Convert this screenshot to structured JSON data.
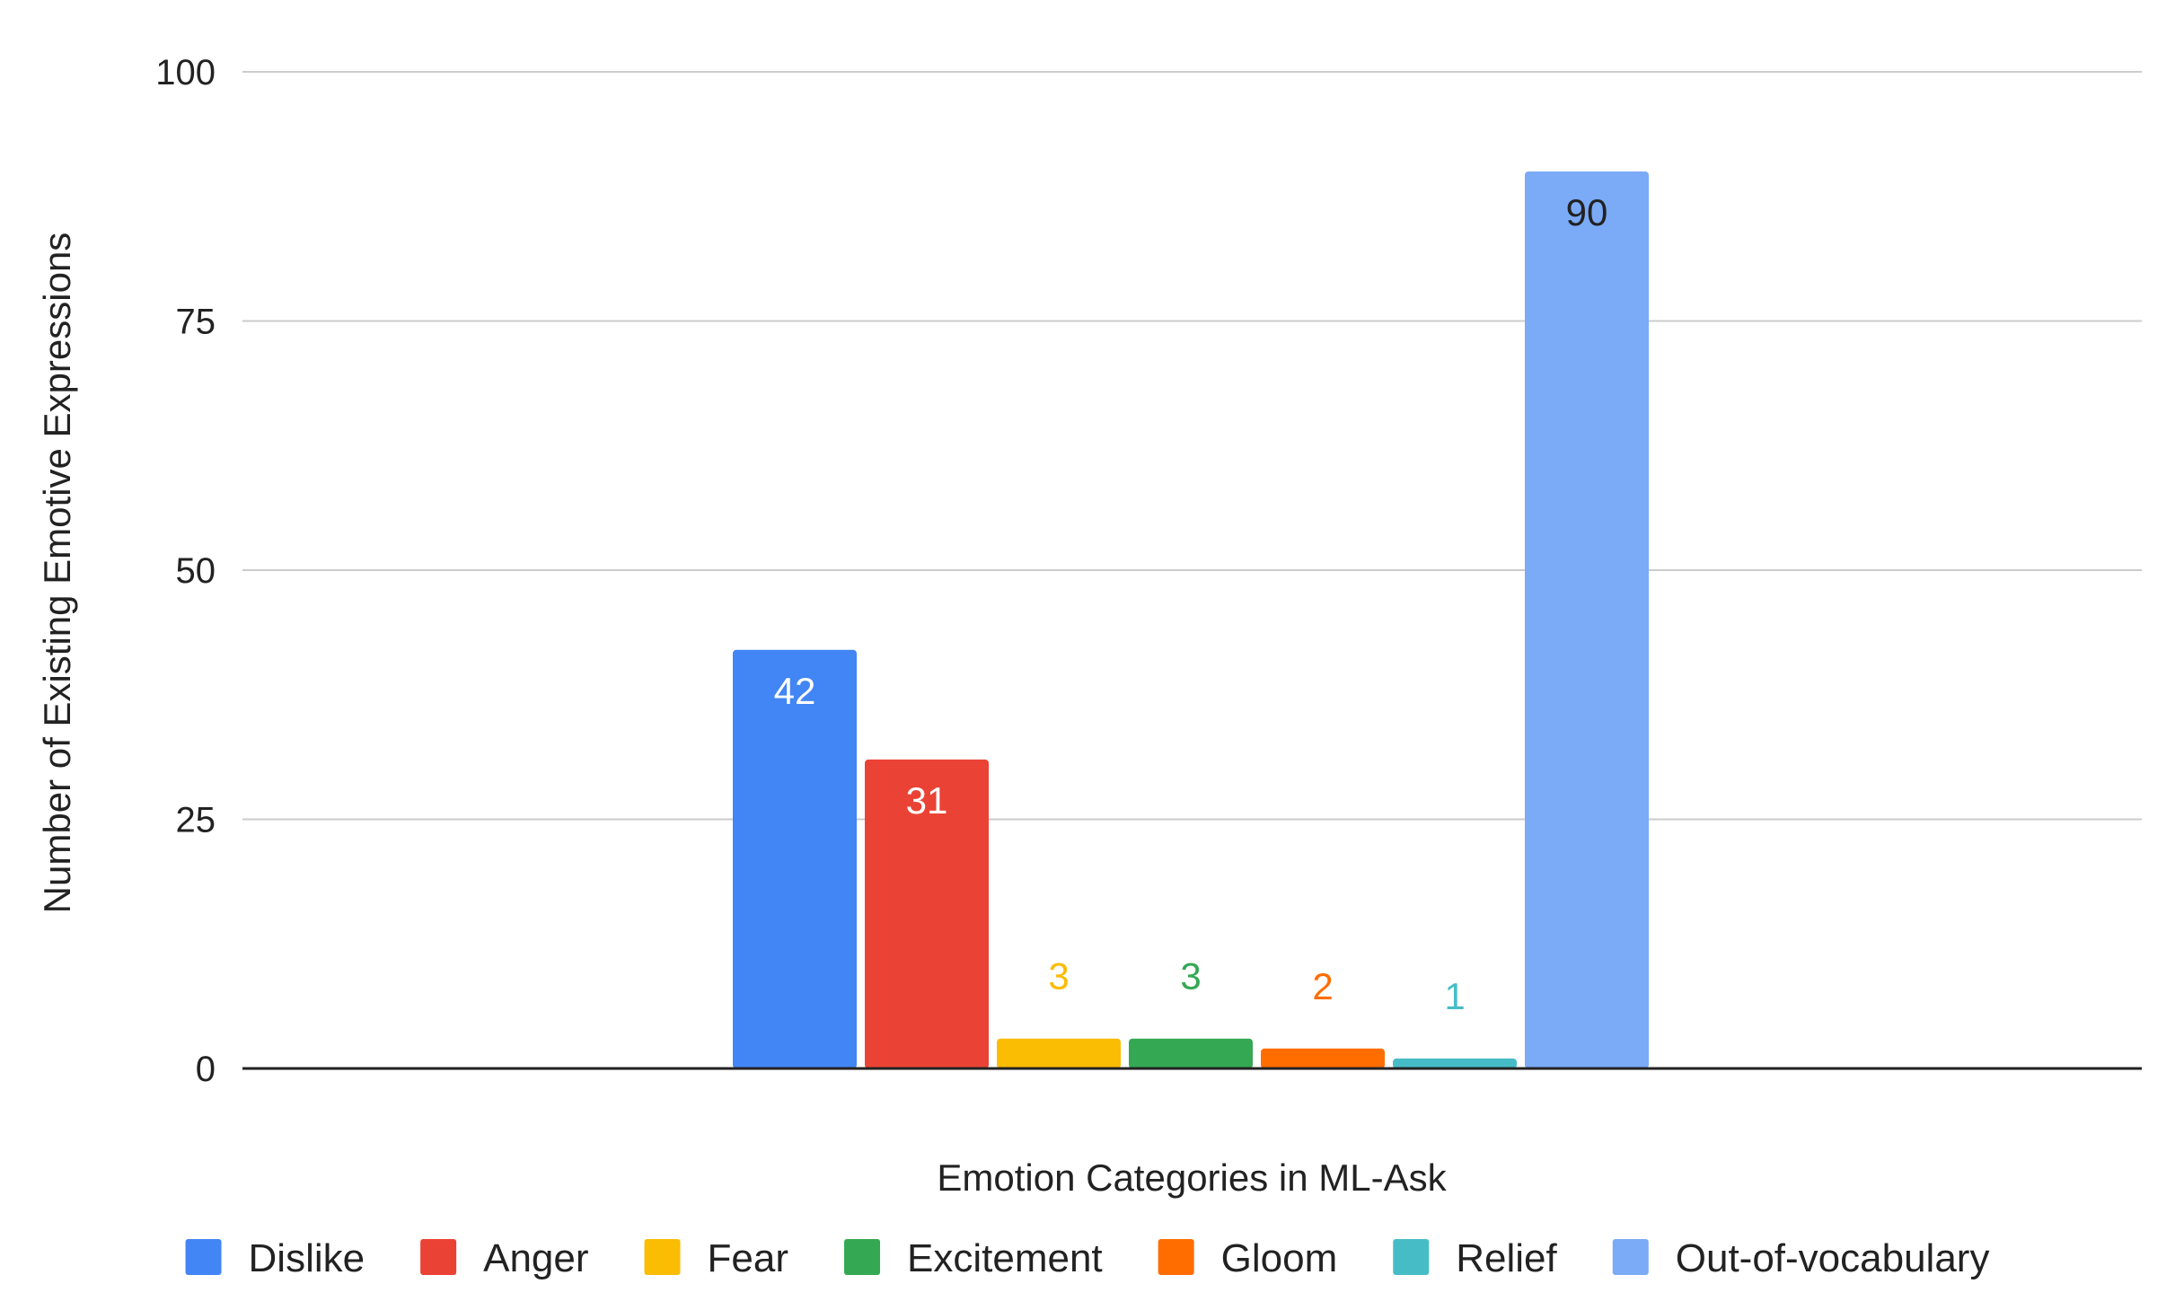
{
  "chart_data": {
    "type": "bar",
    "title": "",
    "xlabel": "Emotion Categories in ML-Ask",
    "ylabel": "Number of Existing Emotive Expressions",
    "ylim": [
      0,
      100
    ],
    "yticks": [
      0,
      25,
      50,
      75,
      100
    ],
    "grid": true,
    "legend_position": "bottom",
    "categories": [
      "Dislike",
      "Anger",
      "Fear",
      "Excitement",
      "Gloom",
      "Relief",
      "Out-of-vocabulary"
    ],
    "values": [
      42,
      31,
      3,
      3,
      2,
      1,
      90
    ],
    "colors": [
      "#4285f4",
      "#ea4335",
      "#fbbc04",
      "#34a853",
      "#ff6d01",
      "#46bdc6",
      "#7baaf7"
    ],
    "label_colors": [
      "#ffffff",
      "#ffffff",
      "#fbbc04",
      "#34a853",
      "#ff6d01",
      "#46bdc6",
      "#222222"
    ],
    "label_inside": [
      true,
      true,
      false,
      false,
      false,
      false,
      true
    ]
  }
}
